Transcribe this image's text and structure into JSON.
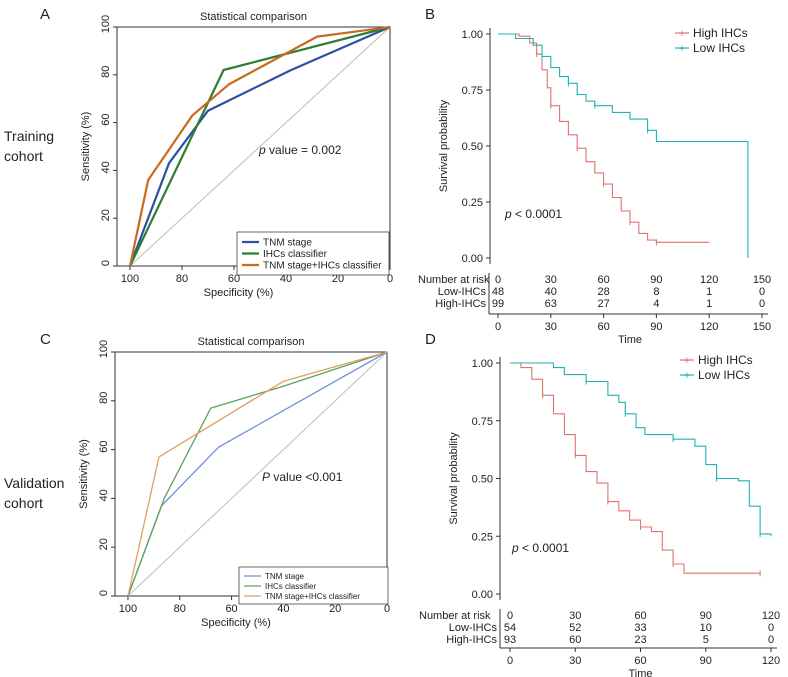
{
  "row_labels": {
    "training": [
      "Training",
      "cohort"
    ],
    "validation": [
      "Validation",
      "cohort"
    ]
  },
  "colors": {
    "tnm_A": "#2f4fa0",
    "ihc_A": "#2e7d32",
    "combo_A": "#c96a1c",
    "tnm_C": "#6c8fd6",
    "ihc_C": "#5aa35a",
    "combo_C": "#e0a060",
    "high": "#e0736e",
    "low": "#1fb3b3",
    "diag": "#bdbdbd"
  },
  "chart_data": [
    {
      "type": "line",
      "panel": "A",
      "title": "Statistical comparison",
      "xlabel": "Specificity (%)",
      "ylabel": "Sensitivity (%)",
      "xlim": [
        105,
        0
      ],
      "ylim": [
        0,
        100
      ],
      "xticks": [
        "100",
        "80",
        "60",
        "40",
        "20",
        "0"
      ],
      "yticks": [
        "0",
        "20",
        "40",
        "60",
        "80",
        "100"
      ],
      "annotation_italic": "p",
      "annotation": " value = 0.002",
      "legend": [
        "TNM stage",
        "IHCs classifier",
        "TNM stage+IHCs classifier"
      ],
      "series": [
        {
          "name": "TNM stage",
          "points": [
            [
              100,
              0
            ],
            [
              85,
              43
            ],
            [
              70,
              65
            ],
            [
              38,
              82
            ],
            [
              0,
              100
            ]
          ]
        },
        {
          "name": "IHCs classifier",
          "points": [
            [
              100,
              0
            ],
            [
              64,
              82
            ],
            [
              0,
              100
            ]
          ]
        },
        {
          "name": "TNM stage+IHCs classifier",
          "points": [
            [
              100,
              0
            ],
            [
              93,
              36
            ],
            [
              76,
              63
            ],
            [
              62,
              76
            ],
            [
              28,
              96
            ],
            [
              0,
              100
            ]
          ]
        }
      ]
    },
    {
      "type": "line",
      "panel": "B",
      "title": "",
      "xlabel": "Time",
      "ylabel": "Survival probability",
      "xlim": [
        0,
        150
      ],
      "ylim": [
        0,
        1
      ],
      "yticks": [
        "0.00",
        "0.25",
        "0.50",
        "0.75",
        "1.00"
      ],
      "xticks": [
        "0",
        "30",
        "60",
        "90",
        "120",
        "150"
      ],
      "pvalue_italic": "p",
      "pvalue": " < 0.0001",
      "legend": [
        "High IHCs",
        "Low IHCs"
      ],
      "series": [
        {
          "name": "High IHCs",
          "points": [
            [
              0,
              1.0
            ],
            [
              12,
              0.99
            ],
            [
              18,
              0.96
            ],
            [
              22,
              0.91
            ],
            [
              25,
              0.84
            ],
            [
              28,
              0.76
            ],
            [
              30,
              0.68
            ],
            [
              35,
              0.61
            ],
            [
              40,
              0.55
            ],
            [
              45,
              0.49
            ],
            [
              50,
              0.43
            ],
            [
              55,
              0.38
            ],
            [
              60,
              0.33
            ],
            [
              65,
              0.27
            ],
            [
              70,
              0.21
            ],
            [
              75,
              0.16
            ],
            [
              80,
              0.11
            ],
            [
              85,
              0.08
            ],
            [
              90,
              0.07
            ],
            [
              120,
              0.07
            ]
          ]
        },
        {
          "name": "Low IHCs",
          "points": [
            [
              0,
              1.0
            ],
            [
              10,
              0.98
            ],
            [
              20,
              0.95
            ],
            [
              25,
              0.9
            ],
            [
              30,
              0.85
            ],
            [
              35,
              0.81
            ],
            [
              40,
              0.78
            ],
            [
              45,
              0.73
            ],
            [
              50,
              0.7
            ],
            [
              55,
              0.68
            ],
            [
              65,
              0.65
            ],
            [
              75,
              0.62
            ],
            [
              85,
              0.57
            ],
            [
              90,
              0.52
            ],
            [
              142,
              0.52
            ],
            [
              142,
              0.0
            ]
          ]
        }
      ],
      "risk_table": {
        "header": "Number at risk",
        "times": [
          "0",
          "30",
          "60",
          "90",
          "120",
          "150"
        ],
        "rows": [
          {
            "label": "Low-IHCs",
            "values": [
              "48",
              "40",
              "28",
              "8",
              "1",
              "0"
            ]
          },
          {
            "label": "High-IHCs",
            "values": [
              "99",
              "63",
              "27",
              "4",
              "1",
              "0"
            ]
          }
        ],
        "axis_ticks": [
          "0",
          "30",
          "60",
          "90",
          "120",
          "150"
        ],
        "xlabel": "Time"
      }
    },
    {
      "type": "line",
      "panel": "C",
      "title": "Statistical comparison",
      "xlabel": "Specificity (%)",
      "ylabel": "Sensitivity (%)",
      "xlim": [
        105,
        0
      ],
      "ylim": [
        0,
        100
      ],
      "xticks": [
        "100",
        "80",
        "60",
        "40",
        "20",
        "0"
      ],
      "yticks": [
        "0",
        "20",
        "40",
        "60",
        "80",
        "100"
      ],
      "annotation_italic": "P",
      "annotation": " value <0.001",
      "legend": [
        "TNM stage",
        "IHCs classifier",
        "TNM stage+IHCs classifier"
      ],
      "series": [
        {
          "name": "TNM stage",
          "points": [
            [
              100,
              0
            ],
            [
              87,
              37
            ],
            [
              65,
              61
            ],
            [
              0,
              100
            ]
          ]
        },
        {
          "name": "IHCs classifier",
          "points": [
            [
              100,
              0
            ],
            [
              86,
              40
            ],
            [
              68,
              77
            ],
            [
              40,
              86
            ],
            [
              0,
              100
            ]
          ]
        },
        {
          "name": "TNM stage+IHCs classifier",
          "points": [
            [
              100,
              0
            ],
            [
              88,
              57
            ],
            [
              40,
              88
            ],
            [
              0,
              100
            ]
          ]
        }
      ]
    },
    {
      "type": "line",
      "panel": "D",
      "title": "",
      "xlabel": "Time",
      "ylabel": "Survival probability",
      "xlim": [
        0,
        120
      ],
      "ylim": [
        0,
        1
      ],
      "yticks": [
        "0.00",
        "0.25",
        "0.50",
        "0.75",
        "1.00"
      ],
      "xticks": [
        "0",
        "30",
        "60",
        "90",
        "120"
      ],
      "pvalue_italic": "p",
      "pvalue": " < 0.0001",
      "legend": [
        "High IHCs",
        "Low IHCs"
      ],
      "series": [
        {
          "name": "High IHCs",
          "points": [
            [
              0,
              1.0
            ],
            [
              5,
              0.98
            ],
            [
              10,
              0.93
            ],
            [
              15,
              0.86
            ],
            [
              20,
              0.78
            ],
            [
              25,
              0.69
            ],
            [
              30,
              0.6
            ],
            [
              35,
              0.53
            ],
            [
              40,
              0.48
            ],
            [
              45,
              0.4
            ],
            [
              50,
              0.36
            ],
            [
              55,
              0.32
            ],
            [
              60,
              0.29
            ],
            [
              65,
              0.27
            ],
            [
              70,
              0.19
            ],
            [
              75,
              0.13
            ],
            [
              80,
              0.09
            ],
            [
              90,
              0.09
            ],
            [
              115,
              0.09
            ]
          ]
        },
        {
          "name": "Low IHCs",
          "points": [
            [
              0,
              1.0
            ],
            [
              20,
              0.98
            ],
            [
              25,
              0.95
            ],
            [
              35,
              0.92
            ],
            [
              45,
              0.86
            ],
            [
              50,
              0.83
            ],
            [
              53,
              0.78
            ],
            [
              58,
              0.72
            ],
            [
              62,
              0.69
            ],
            [
              75,
              0.67
            ],
            [
              85,
              0.64
            ],
            [
              90,
              0.56
            ],
            [
              95,
              0.5
            ],
            [
              105,
              0.49
            ],
            [
              110,
              0.38
            ],
            [
              115,
              0.26
            ],
            [
              120,
              0.25
            ]
          ]
        }
      ],
      "risk_table": {
        "header": "Number at risk",
        "times": [
          "0",
          "30",
          "60",
          "90",
          "120"
        ],
        "rows": [
          {
            "label": "Low-IHCs",
            "values": [
              "54",
              "52",
              "33",
              "10",
              "0"
            ]
          },
          {
            "label": "High-IHCs",
            "values": [
              "93",
              "60",
              "23",
              "5",
              "0"
            ]
          }
        ],
        "axis_ticks": [
          "0",
          "30",
          "60",
          "90",
          "120"
        ],
        "xlabel": "Time"
      }
    }
  ]
}
